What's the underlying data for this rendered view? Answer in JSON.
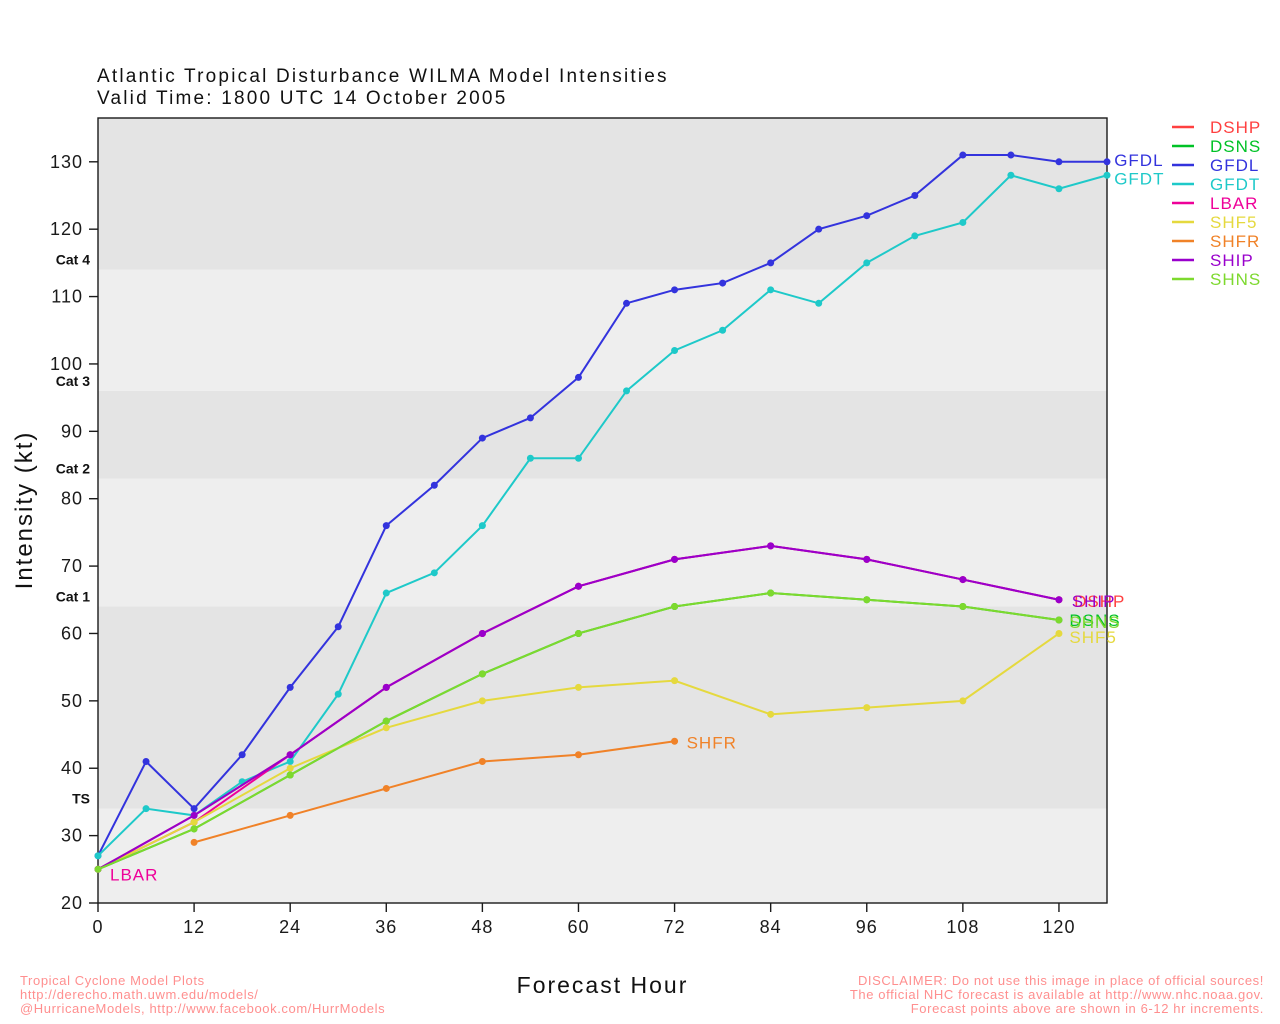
{
  "title": "Atlantic Tropical Disturbance WILMA Model Intensities",
  "subtitle": "Valid Time: 1800 UTC 14 October 2005",
  "footer": {
    "left_lines": [
      "Tropical Cyclone Model Plots",
      "http://derecho.math.uwm.edu/models/",
      "@HurricaneModels, http://www.facebook.com/HurrModels"
    ],
    "right_lines": [
      "DISCLAIMER: Do not use this image in place of official sources!",
      "The official NHC forecast is available at http://www.nhc.noaa.gov.",
      "Forecast points above are shown in 6-12 hr increments."
    ],
    "accent_color": "#ff8f8f"
  },
  "chart_data": {
    "type": "line",
    "title": "Atlantic Tropical Disturbance WILMA Model Intensities",
    "subtitle": "Valid Time: 1800 UTC 14 October 2005",
    "xlabel": "Forecast Hour",
    "ylabel": "Intensity (kt)",
    "xlim": [
      0,
      126
    ],
    "ylim": [
      20,
      136.5
    ],
    "xticks": [
      0,
      12,
      24,
      36,
      48,
      60,
      72,
      84,
      96,
      108,
      120
    ],
    "yticks": [
      20,
      30,
      40,
      50,
      60,
      70,
      80,
      90,
      100,
      110,
      120,
      130
    ],
    "grid": false,
    "legend_position": "top-right-outside",
    "band_fills": {
      "light": "#eeeeee",
      "dark": "#e4e4e4"
    },
    "category_bands": [
      {
        "label": "TS",
        "threshold": 34
      },
      {
        "label": "Cat 1",
        "threshold": 64
      },
      {
        "label": "Cat 2",
        "threshold": 83
      },
      {
        "label": "Cat 3",
        "threshold": 96
      },
      {
        "label": "Cat 4",
        "threshold": 114
      }
    ],
    "series": [
      {
        "name": "DSHP",
        "color": "#ff4040",
        "x": [
          0,
          12,
          24,
          36,
          48,
          60,
          72,
          84,
          96,
          108,
          120
        ],
        "values": [
          25,
          33,
          42,
          52,
          60,
          67,
          71,
          73,
          71,
          68,
          65
        ],
        "label_pos": {
          "hr": 121.9,
          "kt": 64.8
        }
      },
      {
        "name": "DSNS",
        "color": "#00c226",
        "x": [
          0,
          12,
          24,
          36,
          48,
          60,
          72,
          84,
          96,
          108,
          120
        ],
        "values": [
          25,
          31,
          39,
          47,
          54,
          60,
          64,
          66,
          65,
          64,
          62
        ],
        "label_pos": {
          "hr": 121.3,
          "kt": 62.0
        }
      },
      {
        "name": "GFDL",
        "color": "#3333dd",
        "x": [
          0,
          6,
          12,
          18,
          24,
          30,
          36,
          42,
          48,
          54,
          60,
          66,
          72,
          78,
          84,
          90,
          96,
          102,
          108,
          114,
          120,
          126
        ],
        "values": [
          27,
          41,
          34,
          42,
          52,
          61,
          76,
          82,
          89,
          92,
          98,
          109,
          111,
          112,
          115,
          120,
          122,
          125,
          131,
          131,
          130,
          130
        ],
        "label_pos": {
          "hr": 126.9,
          "kt": 130.3
        }
      },
      {
        "name": "GFDT",
        "color": "#1ec9c9",
        "x": [
          0,
          6,
          12,
          18,
          24,
          30,
          36,
          42,
          48,
          54,
          60,
          66,
          72,
          78,
          84,
          90,
          96,
          102,
          108,
          114,
          120,
          126
        ],
        "values": [
          27,
          34,
          33,
          38,
          41,
          51,
          66,
          69,
          76,
          86,
          86,
          96,
          102,
          105,
          111,
          109,
          115,
          119,
          121,
          128,
          126,
          128
        ],
        "label_pos": {
          "hr": 126.9,
          "kt": 127.5
        }
      },
      {
        "name": "LBAR",
        "color": "#ee0099",
        "x": [
          0,
          12,
          24,
          36,
          48,
          60,
          72,
          84,
          96,
          108,
          120
        ],
        "values": [
          25,
          32,
          42,
          52,
          60,
          67,
          71,
          73,
          71,
          68,
          65
        ],
        "label_pos": {
          "hr": 1.5,
          "kt": 24.2
        }
      },
      {
        "name": "SHF5",
        "color": "#e5d93e",
        "x": [
          0,
          12,
          24,
          36,
          48,
          60,
          72,
          84,
          96,
          108,
          120
        ],
        "values": [
          25,
          32,
          40,
          46,
          50,
          52,
          53,
          48,
          49,
          50,
          60
        ],
        "label_pos": {
          "hr": 121.3,
          "kt": 59.5
        }
      },
      {
        "name": "SHFR",
        "color": "#f08228",
        "x": [
          12,
          24,
          36,
          48,
          60,
          72
        ],
        "values": [
          29,
          33,
          37,
          41,
          42,
          44
        ],
        "label_pos": {
          "hr": 73.5,
          "kt": 43.8
        }
      },
      {
        "name": "SHIP",
        "color": "#9900cc",
        "x": [
          0,
          12,
          24,
          36,
          48,
          60,
          72,
          84,
          96,
          108,
          120
        ],
        "values": [
          25,
          33,
          42,
          52,
          60,
          67,
          71,
          73,
          71,
          68,
          65
        ],
        "label_pos": {
          "hr": 121.6,
          "kt": 64.8
        }
      },
      {
        "name": "SHNS",
        "color": "#7dd92e",
        "x": [
          0,
          12,
          24,
          36,
          48,
          60,
          72,
          84,
          96,
          108,
          120
        ],
        "values": [
          25,
          31,
          39,
          47,
          54,
          60,
          64,
          66,
          65,
          64,
          62
        ],
        "label_pos": {
          "hr": 121.3,
          "kt": 61.7
        }
      }
    ],
    "legend": {
      "items": [
        {
          "label": "DSHP",
          "color": "#ff4040"
        },
        {
          "label": "DSNS",
          "color": "#00c226"
        },
        {
          "label": "GFDL",
          "color": "#3333dd"
        },
        {
          "label": "GFDT",
          "color": "#1ec9c9"
        },
        {
          "label": "LBAR",
          "color": "#ee0099"
        },
        {
          "label": "SHF5",
          "color": "#e5d93e"
        },
        {
          "label": "SHFR",
          "color": "#f08228"
        },
        {
          "label": "SHIP",
          "color": "#9900cc"
        },
        {
          "label": "SHNS",
          "color": "#7dd92e"
        }
      ]
    }
  }
}
